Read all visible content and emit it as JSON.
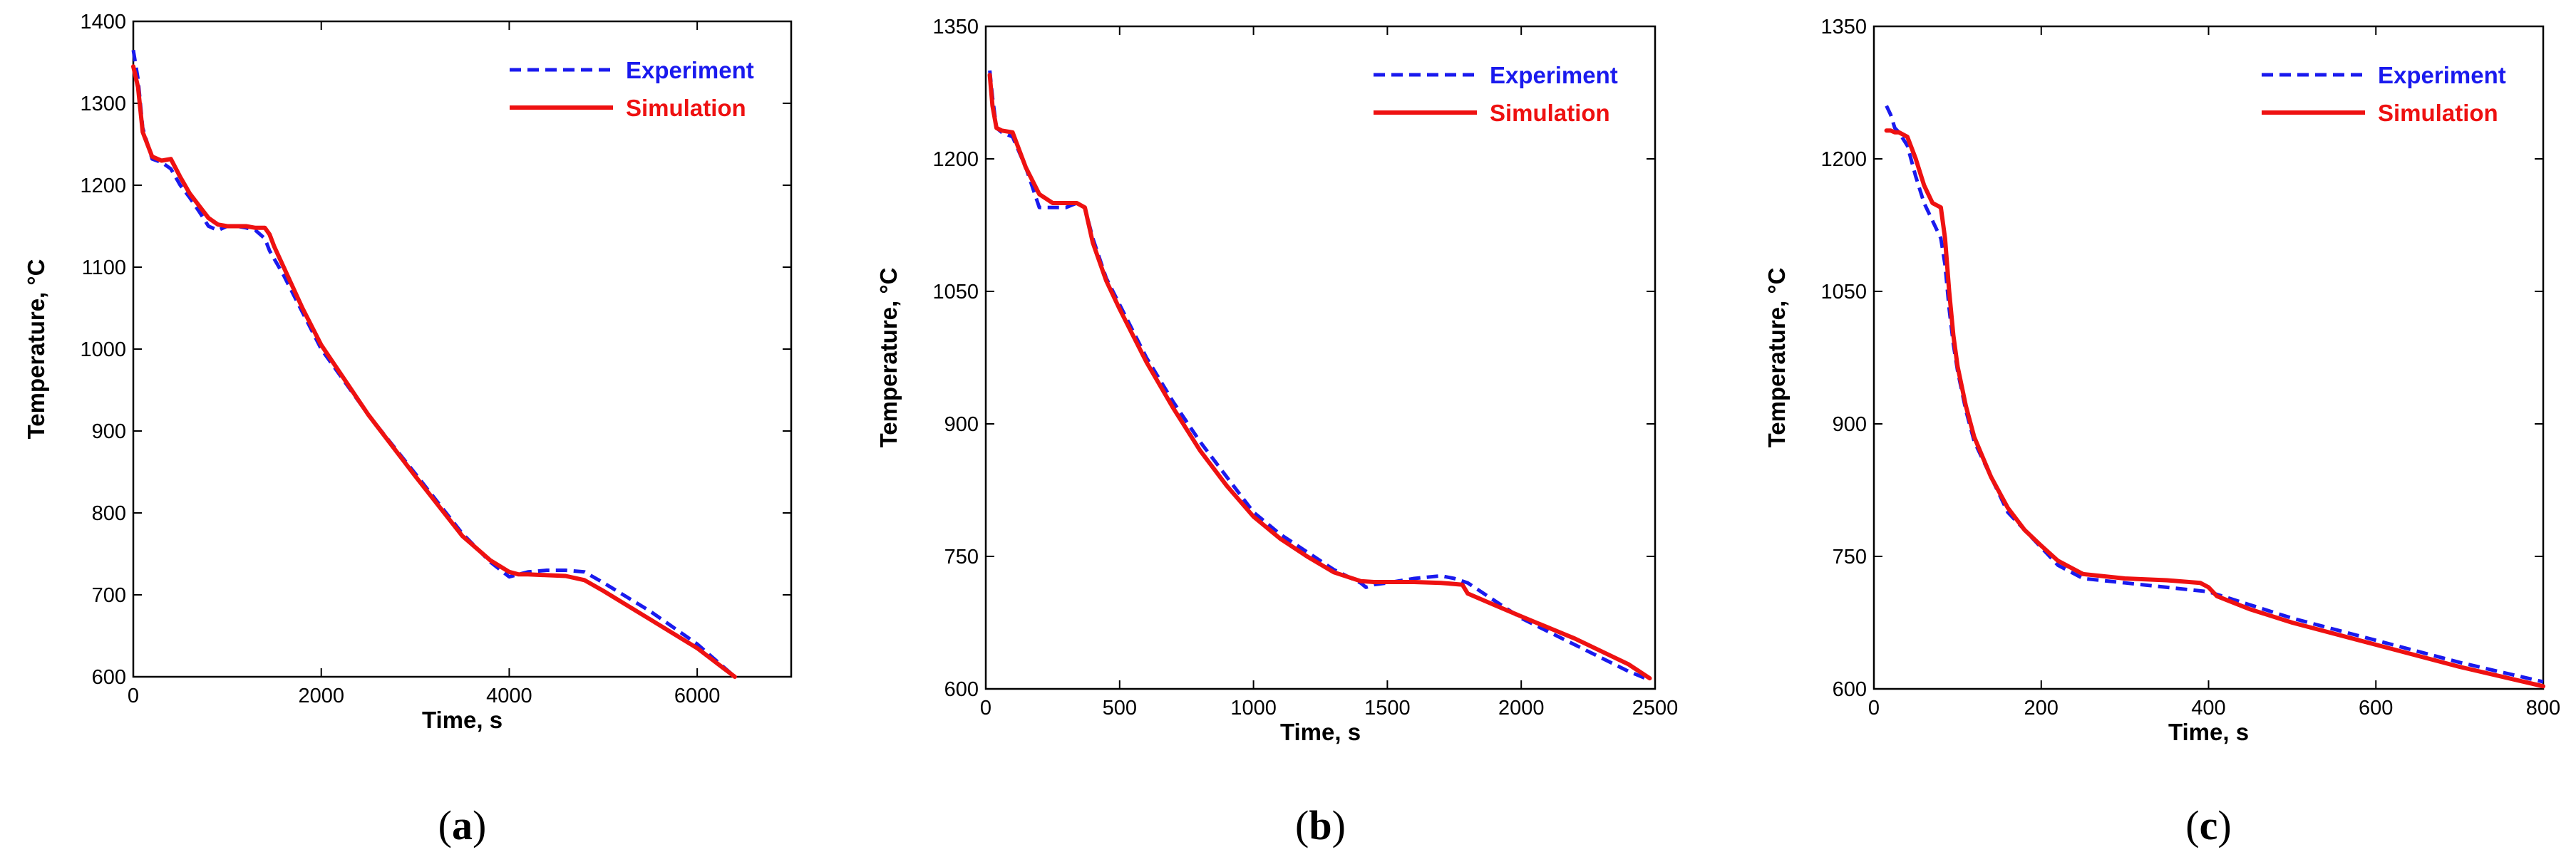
{
  "colors": {
    "experiment": "#1a1aee",
    "simulation": "#ee1111",
    "axis": "#000000"
  },
  "chart_data": [
    {
      "type": "line",
      "caption": "(a)",
      "caption_letter": "a",
      "xlabel": "Time, s",
      "ylabel": "Temperature, °C",
      "xlim": [
        0,
        7000
      ],
      "ylim": [
        600,
        1400
      ],
      "xticks": [
        0,
        2000,
        4000,
        6000
      ],
      "yticks": [
        600,
        700,
        800,
        900,
        1000,
        1100,
        1200,
        1300,
        1400
      ],
      "legend": "top-right",
      "series": [
        {
          "name": "Experiment",
          "style": "dashed",
          "x": [
            0,
            50,
            100,
            200,
            300,
            400,
            500,
            600,
            700,
            800,
            900,
            1000,
            1100,
            1200,
            1300,
            1400,
            1450,
            1500,
            1600,
            1800,
            2000,
            2500,
            3000,
            3500,
            3800,
            4000,
            4100,
            4200,
            4400,
            4600,
            4800,
            5000,
            5500,
            6000,
            6400
          ],
          "y": [
            1365,
            1330,
            1270,
            1232,
            1228,
            1220,
            1200,
            1185,
            1168,
            1150,
            1145,
            1150,
            1150,
            1148,
            1145,
            1135,
            1120,
            1110,
            1090,
            1045,
            1000,
            920,
            848,
            775,
            740,
            722,
            725,
            728,
            730,
            730,
            728,
            715,
            680,
            640,
            600
          ]
        },
        {
          "name": "Simulation",
          "style": "solid",
          "x": [
            0,
            50,
            100,
            200,
            300,
            400,
            500,
            600,
            700,
            800,
            900,
            1000,
            1200,
            1300,
            1400,
            1450,
            1500,
            1600,
            1800,
            2000,
            2500,
            3000,
            3500,
            3800,
            4000,
            4100,
            4200,
            4400,
            4600,
            4800,
            5000,
            5500,
            6000,
            6400
          ],
          "y": [
            1345,
            1320,
            1265,
            1235,
            1230,
            1232,
            1210,
            1190,
            1175,
            1160,
            1152,
            1150,
            1150,
            1148,
            1148,
            1140,
            1125,
            1100,
            1050,
            1005,
            920,
            845,
            772,
            742,
            728,
            725,
            725,
            724,
            723,
            718,
            705,
            670,
            635,
            600
          ]
        }
      ]
    },
    {
      "type": "line",
      "caption": "(b)",
      "caption_letter": "b",
      "xlabel": "Time, s",
      "ylabel": "Temperature, °C",
      "xlim": [
        0,
        2500
      ],
      "ylim": [
        600,
        1350
      ],
      "xticks": [
        0,
        500,
        1000,
        1500,
        2000,
        2500
      ],
      "yticks": [
        600,
        750,
        900,
        1050,
        1200,
        1350
      ],
      "legend": "top-right",
      "series": [
        {
          "name": "Experiment",
          "style": "dashed",
          "x": [
            15,
            25,
            40,
            60,
            100,
            150,
            200,
            250,
            300,
            340,
            370,
            400,
            450,
            500,
            600,
            700,
            800,
            900,
            1000,
            1100,
            1200,
            1300,
            1400,
            1420,
            1450,
            1500,
            1600,
            1700,
            1750,
            1800,
            1900,
            2000,
            2200,
            2400,
            2480
          ],
          "y": [
            1300,
            1270,
            1235,
            1230,
            1225,
            1190,
            1145,
            1145,
            1145,
            1150,
            1145,
            1110,
            1065,
            1035,
            975,
            925,
            880,
            840,
            800,
            775,
            755,
            735,
            720,
            715,
            718,
            720,
            725,
            728,
            725,
            720,
            700,
            680,
            650,
            620,
            610
          ]
        },
        {
          "name": "Simulation",
          "style": "solid",
          "x": [
            15,
            25,
            40,
            60,
            100,
            150,
            200,
            250,
            300,
            340,
            370,
            400,
            450,
            500,
            600,
            700,
            800,
            900,
            1000,
            1100,
            1200,
            1300,
            1400,
            1450,
            1500,
            1600,
            1700,
            1780,
            1800,
            1900,
            2000,
            2200,
            2400,
            2480
          ],
          "y": [
            1295,
            1260,
            1235,
            1232,
            1230,
            1190,
            1160,
            1150,
            1150,
            1150,
            1145,
            1105,
            1062,
            1030,
            970,
            918,
            870,
            830,
            795,
            770,
            750,
            732,
            722,
            721,
            721,
            721,
            720,
            718,
            708,
            695,
            682,
            657,
            628,
            612
          ]
        }
      ]
    },
    {
      "type": "line",
      "caption": "(c)",
      "caption_letter": "c",
      "xlabel": "Time, s",
      "ylabel": "Temperature, °C",
      "xlim": [
        0,
        800
      ],
      "ylim": [
        600,
        1350
      ],
      "xticks": [
        0,
        200,
        400,
        600,
        800
      ],
      "yticks": [
        600,
        750,
        900,
        1050,
        1200,
        1350
      ],
      "legend": "top-right",
      "series": [
        {
          "name": "Experiment",
          "style": "dashed",
          "x": [
            15,
            20,
            25,
            30,
            40,
            50,
            60,
            70,
            80,
            85,
            90,
            95,
            100,
            110,
            120,
            140,
            160,
            180,
            200,
            220,
            250,
            300,
            350,
            400,
            450,
            500,
            600,
            700,
            800
          ],
          "y": [
            1260,
            1250,
            1235,
            1230,
            1215,
            1180,
            1150,
            1130,
            1110,
            1080,
            1030,
            990,
            960,
            915,
            880,
            840,
            800,
            780,
            760,
            740,
            725,
            720,
            715,
            710,
            695,
            680,
            655,
            630,
            608
          ]
        },
        {
          "name": "Simulation",
          "style": "solid",
          "x": [
            15,
            20,
            25,
            30,
            40,
            50,
            60,
            70,
            80,
            85,
            90,
            95,
            100,
            110,
            120,
            140,
            160,
            180,
            200,
            220,
            250,
            300,
            350,
            390,
            400,
            410,
            450,
            500,
            600,
            700,
            800
          ],
          "y": [
            1232,
            1232,
            1230,
            1230,
            1225,
            1200,
            1170,
            1150,
            1145,
            1110,
            1050,
            1000,
            965,
            920,
            885,
            840,
            805,
            780,
            762,
            745,
            730,
            725,
            723,
            720,
            715,
            705,
            690,
            675,
            650,
            625,
            603
          ]
        }
      ]
    }
  ]
}
